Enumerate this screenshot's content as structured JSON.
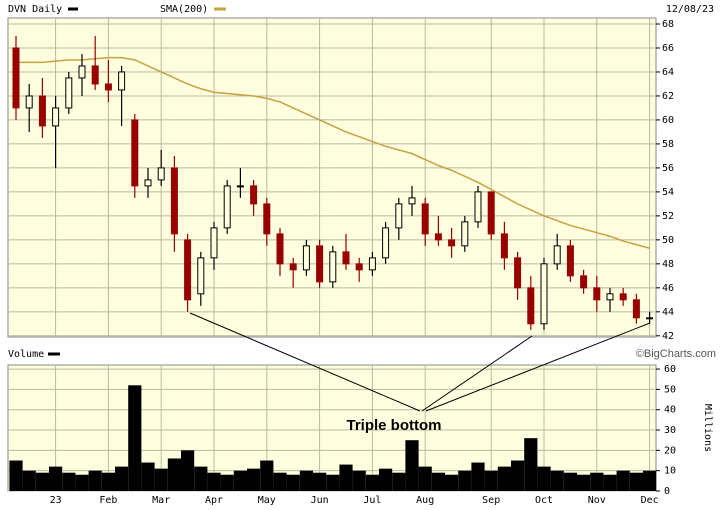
{
  "chart_data": [
    {
      "type": "candlestick",
      "date_label": "12/08/23",
      "annotation": "Triple bottom",
      "credit": "©BigCharts.com",
      "categories": [
        null,
        null,
        null,
        "23",
        null,
        null,
        null,
        "Feb",
        null,
        null,
        null,
        "Mar",
        null,
        null,
        null,
        "Apr",
        null,
        null,
        null,
        "May",
        null,
        null,
        null,
        "Jun",
        null,
        null,
        null,
        "Jul",
        null,
        null,
        null,
        "Aug",
        null,
        null,
        null,
        null,
        "Sep",
        null,
        null,
        null,
        "Oct",
        null,
        null,
        null,
        "Nov",
        null,
        null,
        null,
        "Dec"
      ],
      "series": [
        {
          "name": "DVN Daily",
          "color": "#000000",
          "down_color": "#990000",
          "open": [
            66,
            61,
            62,
            59.5,
            61,
            63.5,
            64.5,
            63,
            62.5,
            60,
            54.5,
            55,
            56,
            50,
            45.5,
            48.5,
            51,
            54.5,
            54.5,
            53,
            50.5,
            48,
            47.5,
            49.5,
            46.5,
            49,
            48,
            47.5,
            48.5,
            51,
            53,
            53,
            50.5,
            50,
            49.5,
            51.5,
            54,
            50.5,
            48.5,
            46,
            43,
            48,
            49.5,
            47,
            46,
            45,
            45.5,
            45,
            43.5
          ],
          "high": [
            67,
            63,
            63.5,
            62,
            64,
            65.5,
            67,
            65,
            64.5,
            60.5,
            56,
            57.5,
            57,
            50.5,
            49,
            51.5,
            55,
            56,
            55,
            53.5,
            51,
            48.5,
            50,
            50,
            49.5,
            50.5,
            48.5,
            49,
            51.5,
            53.5,
            54.5,
            53.5,
            52,
            51,
            52,
            54.5,
            54,
            51.5,
            49,
            47,
            48.5,
            50.5,
            50,
            47.5,
            47,
            46,
            46,
            45.5,
            44
          ],
          "low": [
            60,
            59,
            58.5,
            56,
            60.5,
            62,
            62.5,
            61.5,
            59.5,
            53.5,
            53.5,
            54.5,
            49,
            44,
            44.5,
            47.5,
            50.5,
            53.5,
            52,
            49.5,
            47,
            46,
            47,
            46,
            46,
            47.5,
            46.5,
            47,
            48,
            50,
            52,
            49.5,
            49.5,
            48.5,
            49,
            51,
            50,
            47.5,
            45,
            42.5,
            42.5,
            47.5,
            46.5,
            45.5,
            44,
            44,
            44.5,
            43,
            43
          ],
          "close": [
            61,
            62,
            59.5,
            61,
            63.5,
            64.5,
            63,
            62.5,
            64,
            54.5,
            55,
            56,
            50.5,
            45,
            48.5,
            51,
            54.5,
            54.5,
            53,
            50.5,
            48,
            47.5,
            49.5,
            46.5,
            49,
            48,
            47.5,
            48.5,
            51,
            53,
            53.5,
            50.5,
            50,
            49.5,
            51.5,
            54,
            50.5,
            48.5,
            46,
            43,
            48,
            49.5,
            47,
            46,
            45,
            45.5,
            45,
            43.5,
            43.5
          ]
        },
        {
          "name": "SMA(200)",
          "type": "line",
          "color": "#c8a040",
          "values": [
            64.8,
            64.8,
            64.8,
            64.9,
            65,
            65,
            65.1,
            65.2,
            65.2,
            65,
            64.5,
            64,
            63.5,
            63,
            62.6,
            62.3,
            62.2,
            62.1,
            62,
            61.8,
            61.5,
            61,
            60.5,
            60,
            59.5,
            59,
            58.6,
            58.2,
            57.8,
            57.5,
            57.2,
            56.7,
            56.2,
            55.8,
            55.3,
            54.8,
            54.2,
            53.6,
            53,
            52.5,
            52,
            51.6,
            51.2,
            50.9,
            50.6,
            50.3,
            49.9,
            49.6,
            49.3
          ]
        }
      ],
      "ylim": [
        41.9,
        68.5
      ],
      "yticks": [
        42,
        44,
        46,
        48,
        50,
        52,
        54,
        56,
        58,
        60,
        62,
        64,
        66,
        68
      ],
      "grid": true
    },
    {
      "type": "bar",
      "title": "Volume",
      "y_label": "Millions",
      "color": "#000000",
      "values": [
        15,
        10,
        9,
        12,
        9,
        8,
        10,
        9,
        12,
        52,
        14,
        11,
        16,
        20,
        12,
        9,
        8,
        10,
        11,
        15,
        9,
        8,
        10,
        9,
        8,
        13,
        10,
        8,
        11,
        9,
        25,
        12,
        9,
        8,
        10,
        14,
        10,
        12,
        15,
        26,
        12,
        10,
        9,
        8,
        9,
        8,
        10,
        9,
        10
      ],
      "ylim": [
        0,
        62
      ],
      "yticks": [
        0,
        10,
        20,
        30,
        40,
        50,
        60
      ],
      "grid": true
    }
  ]
}
